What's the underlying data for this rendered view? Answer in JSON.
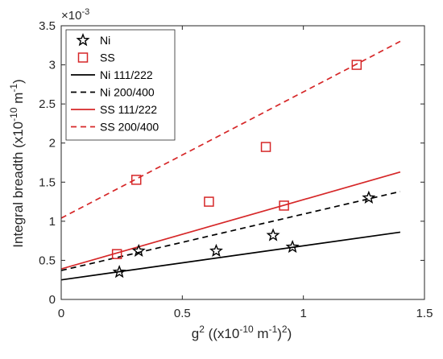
{
  "chart_data": {
    "type": "scatter",
    "title": "",
    "xlabel_base": "g",
    "xlabel_sup": "2",
    "xlabel_rest": " ((x10",
    "xlabel_sup2": "-10",
    "xlabel_rest2": " m",
    "xlabel_sup3": "-1",
    "xlabel_rest3": ")",
    "xlabel_sup4": "2",
    "xlabel_rest4": ")",
    "ylabel_main": "Integral breadth (x10",
    "ylabel_sup": "-10",
    "ylabel_rest": " m",
    "ylabel_sup2": "-1",
    "ylabel_rest2": ")",
    "y_multiplier_base": "×10",
    "y_multiplier_exp": "-3",
    "xlim": [
      0,
      1.5
    ],
    "ylim": [
      0,
      3.5
    ],
    "x_ticks": [
      0,
      0.5,
      1,
      1.5
    ],
    "x_tick_labels": [
      "0",
      "0.5",
      "1",
      "1.5"
    ],
    "y_ticks": [
      0,
      0.5,
      1,
      1.5,
      2,
      2.5,
      3,
      3.5
    ],
    "y_tick_labels": [
      "0",
      "0.5",
      "1",
      "1.5",
      "2",
      "2.5",
      "3",
      "3.5"
    ],
    "legend_position": "top-left",
    "series": [
      {
        "name": "Ni",
        "kind": "points",
        "marker": "star",
        "color": "#000000",
        "x": [
          0.24,
          0.32,
          0.64,
          0.875,
          0.955,
          1.27
        ],
        "y": [
          0.35,
          0.62,
          0.62,
          0.82,
          0.67,
          1.3
        ]
      },
      {
        "name": "SS",
        "kind": "points",
        "marker": "square",
        "color": "#d62728",
        "x": [
          0.23,
          0.31,
          0.61,
          0.845,
          0.92,
          1.22
        ],
        "y": [
          0.58,
          1.53,
          1.25,
          1.95,
          1.2,
          3.0
        ]
      },
      {
        "name": "Ni 111/222",
        "kind": "line",
        "style": "solid",
        "color": "#000000",
        "x": [
          0,
          1.4
        ],
        "y": [
          0.25,
          0.86
        ]
      },
      {
        "name": "Ni 200/400",
        "kind": "line",
        "style": "dashed",
        "color": "#000000",
        "x": [
          0,
          1.4
        ],
        "y": [
          0.37,
          1.38
        ]
      },
      {
        "name": "SS 111/222",
        "kind": "line",
        "style": "solid",
        "color": "#d62728",
        "x": [
          0,
          1.4
        ],
        "y": [
          0.39,
          1.63
        ]
      },
      {
        "name": "SS 200/400",
        "kind": "line",
        "style": "dashed",
        "color": "#d62728",
        "x": [
          0,
          1.4
        ],
        "y": [
          1.04,
          3.3
        ]
      }
    ]
  }
}
